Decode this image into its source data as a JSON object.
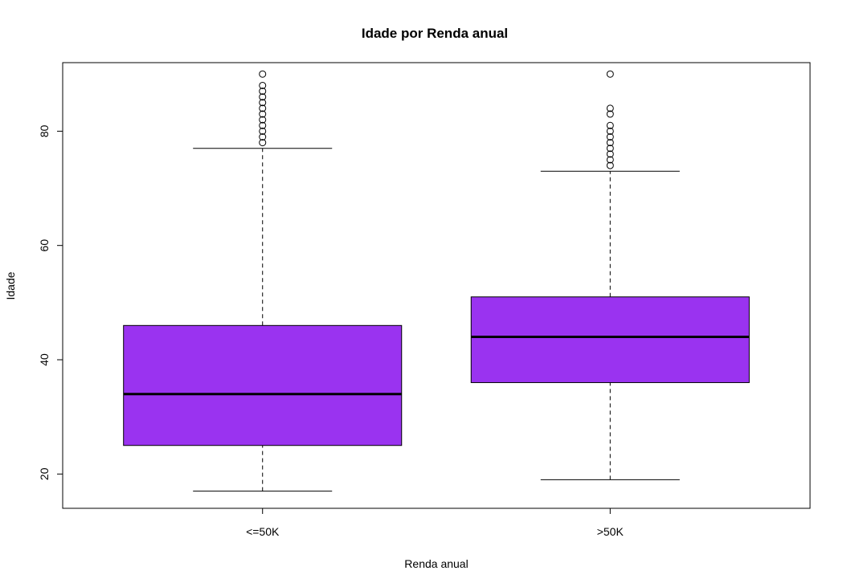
{
  "chart_data": {
    "type": "boxplot",
    "title": "Idade por Renda anual",
    "xlabel": "Renda anual",
    "ylabel": "Idade",
    "ylim": [
      14,
      92
    ],
    "yticks": [
      20,
      40,
      60,
      80
    ],
    "box_color": "#9a33f0",
    "categories": [
      "<=50K",
      ">50K"
    ],
    "boxes": [
      {
        "name": "<=50K",
        "whisker_low": 17,
        "q1": 25,
        "median": 34,
        "q3": 46,
        "whisker_high": 77,
        "outliers": [
          78,
          79,
          80,
          81,
          82,
          83,
          84,
          85,
          86,
          87,
          88,
          90
        ]
      },
      {
        "name": ">50K",
        "whisker_low": 19,
        "q1": 36,
        "median": 44,
        "q3": 51,
        "whisker_high": 73,
        "outliers": [
          74,
          75,
          76,
          77,
          78,
          79,
          80,
          81,
          83,
          84,
          90
        ]
      }
    ]
  }
}
